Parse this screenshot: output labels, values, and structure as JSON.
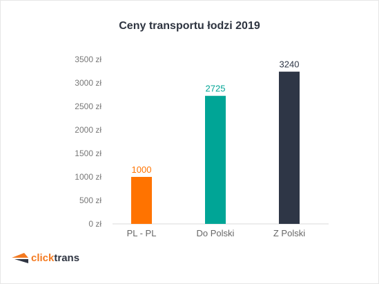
{
  "chart_data": {
    "type": "bar",
    "title": "Ceny transportu łodzi 2019",
    "categories": [
      "PL - PL",
      "Do Polski",
      "Z Polski"
    ],
    "values": [
      1000,
      2725,
      3240
    ],
    "value_labels": [
      "1000",
      "2725",
      "3240"
    ],
    "bar_colors": [
      "#ff7300",
      "#00a596",
      "#2e3646"
    ],
    "label_colors": [
      "#ff7300",
      "#00a596",
      "#2e3646"
    ],
    "yticks": [
      {
        "value": 0,
        "label": "0 zł"
      },
      {
        "value": 500,
        "label": "500 zł"
      },
      {
        "value": 1000,
        "label": "1000 zł"
      },
      {
        "value": 1500,
        "label": "1500 zł"
      },
      {
        "value": 2000,
        "label": "2000 zł"
      },
      {
        "value": 2500,
        "label": "2500 zł"
      },
      {
        "value": 3000,
        "label": "3000 zł"
      },
      {
        "value": 3500,
        "label": "3500 zł"
      }
    ],
    "ylim": [
      0,
      3500
    ],
    "grid": false,
    "xlabel": "",
    "ylabel": ""
  },
  "brand": {
    "name_prefix": "click",
    "name_suffix": "trans",
    "accent_color": "#f47a20"
  }
}
